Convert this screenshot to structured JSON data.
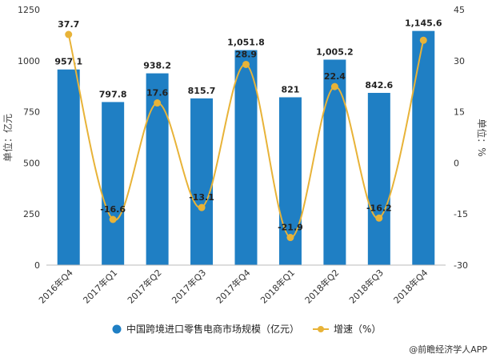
{
  "chart_data": {
    "type": "bar",
    "categories": [
      "2016年Q4",
      "2017年Q1",
      "2017年Q2",
      "2017年Q3",
      "2017年Q4",
      "2018年Q1",
      "2018年Q2",
      "2018年Q3",
      "2018年Q4"
    ],
    "series": [
      {
        "name": "中国跨境进口零售电商市场规模（亿元）",
        "type": "bar",
        "axis": "left",
        "color": "#1f7fc4",
        "values": [
          957.1,
          797.8,
          938.2,
          815.7,
          1051.8,
          821,
          1005.2,
          842.6,
          1145.6
        ],
        "labels": [
          "957.1",
          "797.8",
          "938.2",
          "815.7",
          "1,051.8",
          "821",
          "1,005.2",
          "842.6",
          "1,145.6"
        ]
      },
      {
        "name": "增速（%）",
        "type": "line",
        "axis": "right",
        "color": "#e8b338",
        "values": [
          37.7,
          -16.6,
          17.6,
          -13.1,
          28.9,
          -21.9,
          22.4,
          -16.2,
          36.0
        ],
        "labels": [
          "37.7",
          "-16.6",
          "17.6",
          "-13.1",
          "28.9",
          "-21.9",
          "22.4",
          "-16.2",
          ""
        ]
      }
    ],
    "left_axis": {
      "label": "单位：亿元",
      "ylim": [
        0,
        1250
      ],
      "ticks": [
        "0",
        "250",
        "500",
        "750",
        "1000",
        "1250"
      ]
    },
    "right_axis": {
      "label": "单位：%",
      "ylim": [
        -30,
        45
      ],
      "ticks": [
        "-30",
        "-15",
        "0",
        "15",
        "30",
        "45"
      ]
    },
    "legend_position": "bottom",
    "grid": false
  },
  "source": "@前瞻经济学人APP",
  "legend_items": [
    "中国跨境进口零售电商市场规模（亿元）",
    "增速（%）"
  ]
}
